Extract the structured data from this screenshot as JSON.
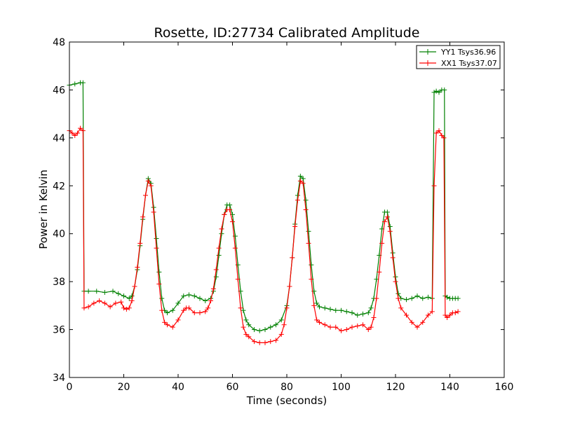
{
  "chart_data": {
    "type": "line",
    "title": "Rosette, ID:27734 Calibrated Amplitude",
    "xlabel": "Time (seconds)",
    "ylabel": "Power in Kelvin",
    "xlim": [
      0,
      160
    ],
    "ylim": [
      34,
      48
    ],
    "xticks": [
      0,
      20,
      40,
      60,
      80,
      100,
      120,
      140,
      160
    ],
    "yticks": [
      34,
      36,
      38,
      40,
      42,
      44,
      46,
      48
    ],
    "grid": false,
    "legend_position": "top-right",
    "marker": "+",
    "series": [
      {
        "name": "YY1 Tsys36.96",
        "color": "#008000",
        "points": [
          [
            0,
            46.2
          ],
          [
            2,
            46.25
          ],
          [
            4,
            46.3
          ],
          [
            5,
            46.3
          ],
          [
            5.4,
            37.6
          ],
          [
            7,
            37.6
          ],
          [
            10,
            37.6
          ],
          [
            13,
            37.55
          ],
          [
            16,
            37.6
          ],
          [
            18,
            37.5
          ],
          [
            20,
            37.4
          ],
          [
            22,
            37.3
          ],
          [
            23,
            37.4
          ],
          [
            24,
            37.8
          ],
          [
            25,
            38.5
          ],
          [
            26,
            39.5
          ],
          [
            27,
            40.6
          ],
          [
            28,
            41.6
          ],
          [
            29,
            42.3
          ],
          [
            30,
            42.1
          ],
          [
            31,
            41.1
          ],
          [
            32,
            39.8
          ],
          [
            33,
            38.4
          ],
          [
            34,
            37.3
          ],
          [
            35,
            36.8
          ],
          [
            36,
            36.7
          ],
          [
            38,
            36.8
          ],
          [
            40,
            37.1
          ],
          [
            42,
            37.4
          ],
          [
            44,
            37.45
          ],
          [
            46,
            37.4
          ],
          [
            48,
            37.3
          ],
          [
            50,
            37.2
          ],
          [
            52,
            37.3
          ],
          [
            53,
            37.6
          ],
          [
            54,
            38.2
          ],
          [
            55,
            39.1
          ],
          [
            56,
            40.0
          ],
          [
            57,
            40.8
          ],
          [
            58,
            41.2
          ],
          [
            59,
            41.2
          ],
          [
            60,
            40.8
          ],
          [
            61,
            39.9
          ],
          [
            62,
            38.7
          ],
          [
            63,
            37.6
          ],
          [
            64,
            36.8
          ],
          [
            65,
            36.4
          ],
          [
            66,
            36.2
          ],
          [
            68,
            36.0
          ],
          [
            70,
            35.95
          ],
          [
            72,
            36.0
          ],
          [
            74,
            36.1
          ],
          [
            76,
            36.2
          ],
          [
            78,
            36.4
          ],
          [
            80,
            37.0
          ],
          [
            81,
            37.8
          ],
          [
            82,
            39.0
          ],
          [
            83,
            40.4
          ],
          [
            84,
            41.6
          ],
          [
            85,
            42.4
          ],
          [
            86,
            42.3
          ],
          [
            87,
            41.4
          ],
          [
            88,
            40.1
          ],
          [
            89,
            38.7
          ],
          [
            90,
            37.6
          ],
          [
            91,
            37.1
          ],
          [
            92,
            36.95
          ],
          [
            94,
            36.9
          ],
          [
            96,
            36.85
          ],
          [
            98,
            36.8
          ],
          [
            100,
            36.8
          ],
          [
            102,
            36.75
          ],
          [
            104,
            36.7
          ],
          [
            106,
            36.6
          ],
          [
            108,
            36.65
          ],
          [
            110,
            36.7
          ],
          [
            111,
            36.9
          ],
          [
            112,
            37.3
          ],
          [
            113,
            38.1
          ],
          [
            114,
            39.1
          ],
          [
            115,
            40.2
          ],
          [
            116,
            40.9
          ],
          [
            117,
            40.9
          ],
          [
            118,
            40.3
          ],
          [
            119,
            39.2
          ],
          [
            120,
            38.2
          ],
          [
            121,
            37.5
          ],
          [
            122,
            37.3
          ],
          [
            124,
            37.25
          ],
          [
            126,
            37.3
          ],
          [
            128,
            37.4
          ],
          [
            130,
            37.3
          ],
          [
            132,
            37.35
          ],
          [
            133.5,
            37.3
          ],
          [
            134.2,
            45.9
          ],
          [
            135,
            45.95
          ],
          [
            136,
            45.9
          ],
          [
            137,
            46.0
          ],
          [
            138,
            46.0
          ],
          [
            138.3,
            37.4
          ],
          [
            139,
            37.35
          ],
          [
            140,
            37.3
          ],
          [
            141,
            37.3
          ],
          [
            142,
            37.3
          ],
          [
            143,
            37.3
          ]
        ]
      },
      {
        "name": "XX1 Tsys37.07",
        "color": "#ff0000",
        "points": [
          [
            0,
            44.3
          ],
          [
            1,
            44.2
          ],
          [
            2,
            44.1
          ],
          [
            3,
            44.2
          ],
          [
            4,
            44.4
          ],
          [
            5,
            44.3
          ],
          [
            5.4,
            36.9
          ],
          [
            7,
            36.95
          ],
          [
            9,
            37.1
          ],
          [
            11,
            37.2
          ],
          [
            13,
            37.1
          ],
          [
            15,
            36.95
          ],
          [
            17,
            37.1
          ],
          [
            19,
            37.15
          ],
          [
            20,
            36.9
          ],
          [
            21,
            36.85
          ],
          [
            22,
            36.9
          ],
          [
            23,
            37.2
          ],
          [
            24,
            37.8
          ],
          [
            25,
            38.6
          ],
          [
            26,
            39.6
          ],
          [
            27,
            40.7
          ],
          [
            28,
            41.6
          ],
          [
            29,
            42.2
          ],
          [
            30,
            42.0
          ],
          [
            31,
            40.9
          ],
          [
            32,
            39.4
          ],
          [
            33,
            37.9
          ],
          [
            34,
            36.8
          ],
          [
            35,
            36.3
          ],
          [
            36,
            36.2
          ],
          [
            38,
            36.1
          ],
          [
            40,
            36.4
          ],
          [
            42,
            36.8
          ],
          [
            43,
            36.9
          ],
          [
            44,
            36.9
          ],
          [
            46,
            36.7
          ],
          [
            48,
            36.7
          ],
          [
            50,
            36.75
          ],
          [
            51,
            36.9
          ],
          [
            52,
            37.2
          ],
          [
            53,
            37.7
          ],
          [
            54,
            38.5
          ],
          [
            55,
            39.4
          ],
          [
            56,
            40.2
          ],
          [
            57,
            40.8
          ],
          [
            58,
            41.0
          ],
          [
            59,
            41.0
          ],
          [
            60,
            40.5
          ],
          [
            61,
            39.4
          ],
          [
            62,
            38.1
          ],
          [
            63,
            36.9
          ],
          [
            64,
            36.1
          ],
          [
            65,
            35.8
          ],
          [
            66,
            35.7
          ],
          [
            68,
            35.5
          ],
          [
            70,
            35.45
          ],
          [
            72,
            35.45
          ],
          [
            74,
            35.5
          ],
          [
            76,
            35.55
          ],
          [
            78,
            35.8
          ],
          [
            79,
            36.2
          ],
          [
            80,
            36.9
          ],
          [
            81,
            37.8
          ],
          [
            82,
            39.0
          ],
          [
            83,
            40.3
          ],
          [
            84,
            41.4
          ],
          [
            85,
            42.2
          ],
          [
            86,
            42.1
          ],
          [
            87,
            41.0
          ],
          [
            88,
            39.6
          ],
          [
            89,
            38.1
          ],
          [
            90,
            37.0
          ],
          [
            91,
            36.4
          ],
          [
            92,
            36.3
          ],
          [
            94,
            36.2
          ],
          [
            96,
            36.1
          ],
          [
            98,
            36.1
          ],
          [
            100,
            35.95
          ],
          [
            102,
            36.0
          ],
          [
            104,
            36.1
          ],
          [
            106,
            36.15
          ],
          [
            108,
            36.2
          ],
          [
            110,
            36.0
          ],
          [
            111,
            36.1
          ],
          [
            112,
            36.5
          ],
          [
            113,
            37.3
          ],
          [
            114,
            38.4
          ],
          [
            115,
            39.6
          ],
          [
            116,
            40.5
          ],
          [
            117,
            40.7
          ],
          [
            118,
            40.1
          ],
          [
            119,
            39.0
          ],
          [
            120,
            38.0
          ],
          [
            121,
            37.3
          ],
          [
            122,
            36.9
          ],
          [
            124,
            36.6
          ],
          [
            126,
            36.3
          ],
          [
            128,
            36.1
          ],
          [
            130,
            36.3
          ],
          [
            132,
            36.6
          ],
          [
            133.5,
            36.75
          ],
          [
            134.2,
            42.0
          ],
          [
            135,
            44.2
          ],
          [
            136,
            44.3
          ],
          [
            137,
            44.1
          ],
          [
            137.8,
            44.0
          ],
          [
            138.3,
            36.6
          ],
          [
            139,
            36.5
          ],
          [
            140,
            36.6
          ],
          [
            141,
            36.7
          ],
          [
            142,
            36.7
          ],
          [
            143,
            36.75
          ]
        ]
      }
    ]
  }
}
